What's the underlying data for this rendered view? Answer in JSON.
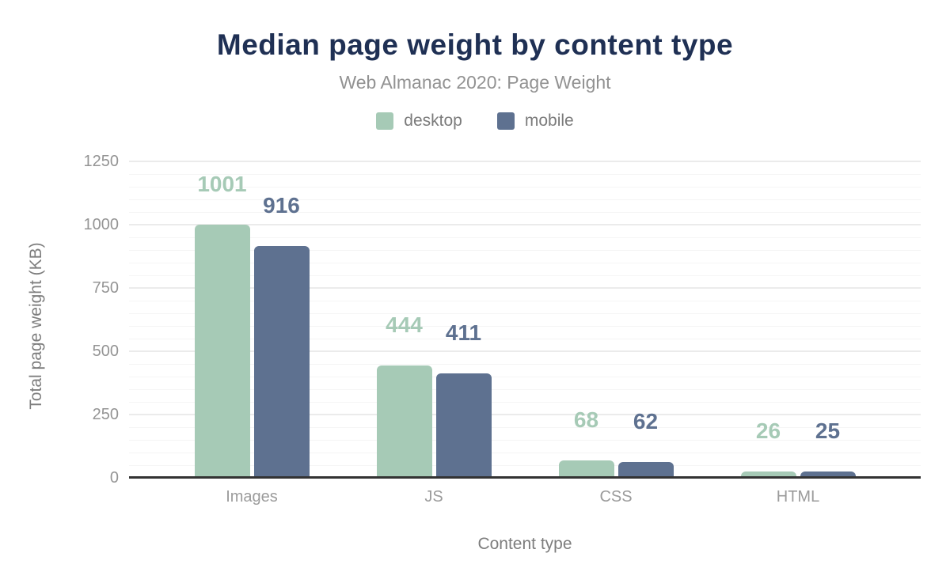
{
  "header": {
    "title": "Median page weight by content type",
    "subtitle": "Web Almanac 2020: Page Weight"
  },
  "chart_data": {
    "type": "bar",
    "title": "Median page weight by content type",
    "subtitle": "Web Almanac 2020: Page Weight",
    "categories": [
      "Images",
      "JS",
      "CSS",
      "HTML"
    ],
    "series": [
      {
        "name": "desktop",
        "color": "#a6cab6",
        "values": [
          1001,
          444,
          68,
          26
        ]
      },
      {
        "name": "mobile",
        "color": "#5e7190",
        "values": [
          916,
          411,
          62,
          25
        ]
      }
    ],
    "xlabel": "Content type",
    "ylabel": "Total page weight (KB)",
    "ylim": [
      0,
      1250
    ],
    "yticks": [
      0,
      250,
      500,
      750,
      1000,
      1250
    ],
    "minor_grid_step": 50,
    "grid": true,
    "legend_position": "top",
    "value_labels": true
  },
  "colors": {
    "title": "#1f3054",
    "subtitle": "#929292",
    "legend_label": "#7b7b7b",
    "tick_label": "#949494",
    "category_label": "#9b9b9b",
    "axis_title": "#7d7d7d",
    "baseline": "#333333",
    "grid_major": "#ebebeb",
    "grid_minor": "#f5f5f5",
    "background": "#ffffff"
  }
}
